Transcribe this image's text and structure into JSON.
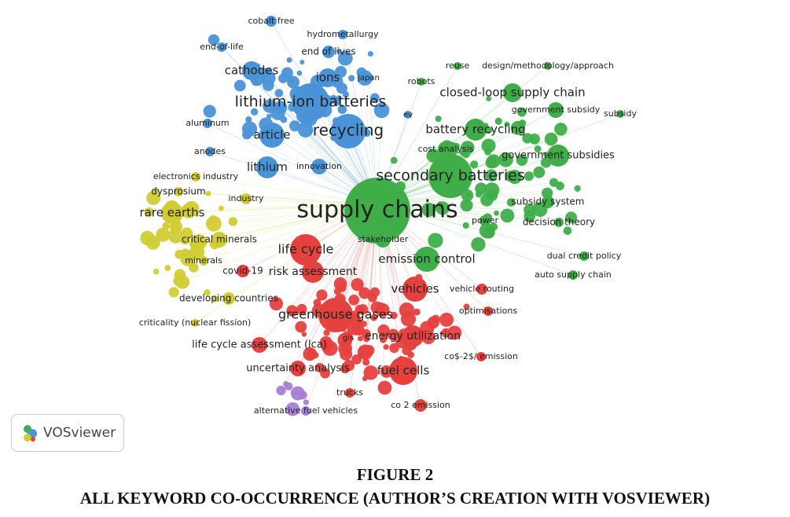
{
  "clusters": [
    {
      "color": "#4a93d8"
    },
    {
      "color": "#3fae49"
    },
    {
      "color": "#d2cc34"
    },
    {
      "color": "#e5413f"
    },
    {
      "color": "#a77fd6"
    }
  ],
  "nodes": [
    {
      "label": "cobalt free",
      "cluster": 0
    },
    {
      "label": "hydrometallurgy",
      "cluster": 0
    },
    {
      "label": "end-of-life",
      "cluster": 0
    },
    {
      "label": "end of lives",
      "cluster": 0
    },
    {
      "label": "cathodes",
      "cluster": 0
    },
    {
      "label": "ions",
      "cluster": 0
    },
    {
      "label": "japan",
      "cluster": 0
    },
    {
      "label": "lithium-ion batteries",
      "cluster": 0
    },
    {
      "label": "article",
      "cluster": 0
    },
    {
      "label": "recycling",
      "cluster": 0
    },
    {
      "label": "aluminum",
      "cluster": 0
    },
    {
      "label": "anodes",
      "cluster": 0
    },
    {
      "label": "lithium",
      "cluster": 0
    },
    {
      "label": "innovation",
      "cluster": 0
    },
    {
      "label": "ev",
      "cluster": 0
    },
    {
      "label": "reuse",
      "cluster": 1
    },
    {
      "label": "design/methodology/approach",
      "cluster": 1
    },
    {
      "label": "robots",
      "cluster": 1
    },
    {
      "label": "closed-loop supply chain",
      "cluster": 1
    },
    {
      "label": "government subsidy",
      "cluster": 1
    },
    {
      "label": "subsidy",
      "cluster": 1
    },
    {
      "label": "battery recycling",
      "cluster": 1
    },
    {
      "label": "cost analysis",
      "cluster": 1
    },
    {
      "label": "government subsidies",
      "cluster": 1
    },
    {
      "label": "secondary batteries",
      "cluster": 1
    },
    {
      "label": "supply chains",
      "cluster": 1
    },
    {
      "label": "subsidy system",
      "cluster": 1
    },
    {
      "label": "power",
      "cluster": 1
    },
    {
      "label": "decision theory",
      "cluster": 1
    },
    {
      "label": "stakeholder",
      "cluster": 1
    },
    {
      "label": "emission control",
      "cluster": 1
    },
    {
      "label": "dual credit policy",
      "cluster": 1
    },
    {
      "label": "auto supply chain",
      "cluster": 1
    },
    {
      "label": "electronics industry",
      "cluster": 2
    },
    {
      "label": "dysprosium",
      "cluster": 2
    },
    {
      "label": "industry",
      "cluster": 2
    },
    {
      "label": "rare earths",
      "cluster": 2
    },
    {
      "label": "critical minerals",
      "cluster": 2
    },
    {
      "label": "minerals",
      "cluster": 2
    },
    {
      "label": "developing countries",
      "cluster": 2
    },
    {
      "label": "criticality (nuclear fission)",
      "cluster": 2
    },
    {
      "label": "life cycle",
      "cluster": 3
    },
    {
      "label": "covid-19",
      "cluster": 3
    },
    {
      "label": "risk assessment",
      "cluster": 3
    },
    {
      "label": "vehicles",
      "cluster": 3
    },
    {
      "label": "vehicle routing",
      "cluster": 3
    },
    {
      "label": "greenhouse gases",
      "cluster": 3
    },
    {
      "label": "optimisations",
      "cluster": 3
    },
    {
      "label": "energy utilization",
      "cluster": 3
    },
    {
      "label": "gis",
      "cluster": 3
    },
    {
      "label": "life cycle assessment (lca)",
      "cluster": 3
    },
    {
      "label": "uncertainty analysis",
      "cluster": 3
    },
    {
      "label": "fuel cells",
      "cluster": 3
    },
    {
      "label": "co$-2$/ emission",
      "cluster": 3
    },
    {
      "label": "trucks",
      "cluster": 3
    },
    {
      "label": "co 2 emission",
      "cluster": 3
    },
    {
      "label": "alternative fuel vehicles",
      "cluster": 4
    }
  ],
  "logo": "VOSviewer",
  "caption": {
    "number": "FIGURE 2",
    "title": "ALL KEYWORD CO-OCCURRENCE (AUTHOR’S CREATION WITH VOSVIEWER)"
  }
}
